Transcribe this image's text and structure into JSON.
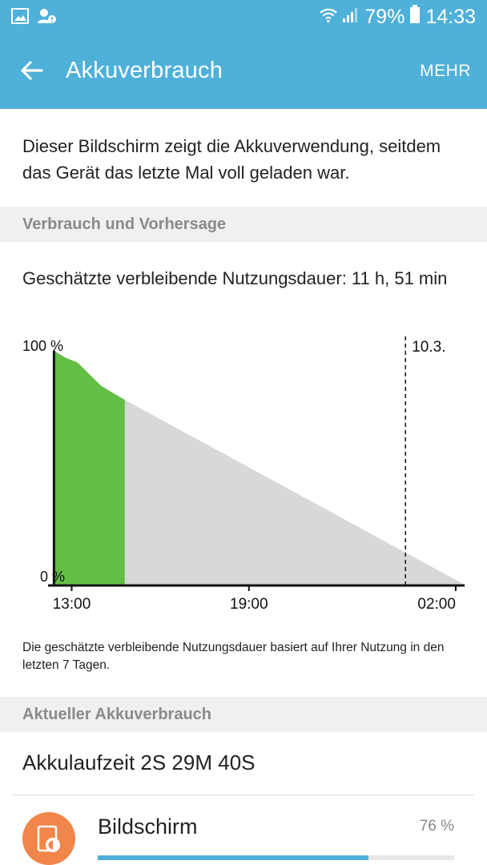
{
  "status_bar": {
    "battery_percent": "79%",
    "time": "14:33",
    "icons": [
      "gallery-icon",
      "user-alert-icon",
      "wifi-icon",
      "signal-icon",
      "battery-icon"
    ]
  },
  "app_bar": {
    "title": "Akkuverbrauch",
    "more_label": "MEHR"
  },
  "intro_text": "Dieser Bildschirm zeigt die Akkuverwendung, seitdem das Gerät das letzte Mal voll geladen war.",
  "section_usage_forecast": "Verbrauch und Vorhersage",
  "estimate_text": "Geschätzte verbleibende Nutzungsdauer: 11 h, 51 min",
  "chart_data": {
    "type": "area",
    "y_tick_labels": [
      "100 %",
      "0 %"
    ],
    "x_tick_labels": [
      "13:00",
      "19:00",
      "02:00"
    ],
    "date_marker_label": "10.3.",
    "ylim": [
      0,
      100
    ],
    "xlim": [
      12.2,
      26.3
    ],
    "x_ticks": [
      13,
      19,
      26
    ],
    "date_marker_x": 24.3,
    "series": [
      {
        "kind": "actual",
        "color": "#63be45",
        "x": [
          12.4,
          12.8,
          13.2,
          13.6,
          14.0,
          14.4,
          14.8
        ],
        "y": [
          100,
          97,
          95,
          90,
          85,
          82,
          79
        ]
      },
      {
        "kind": "forecast",
        "color": "#d8d8d8",
        "x": [
          14.8,
          26.3
        ],
        "y": [
          79,
          0
        ]
      }
    ]
  },
  "footnote": "Die geschätzte verbleibende Nutzungsdauer basiert auf Ihrer Nutzung in den letzten 7 Tagen.",
  "section_current_usage": "Aktueller Akkuverbrauch",
  "battery_runtime": "Akkulaufzeit 2S 29M 40S",
  "usage_items": [
    {
      "name": "Bildschirm",
      "percent_label": "76 %",
      "fraction": 0.76,
      "icon": "screen-brightness-icon",
      "icon_color": "#f0864a"
    }
  ]
}
